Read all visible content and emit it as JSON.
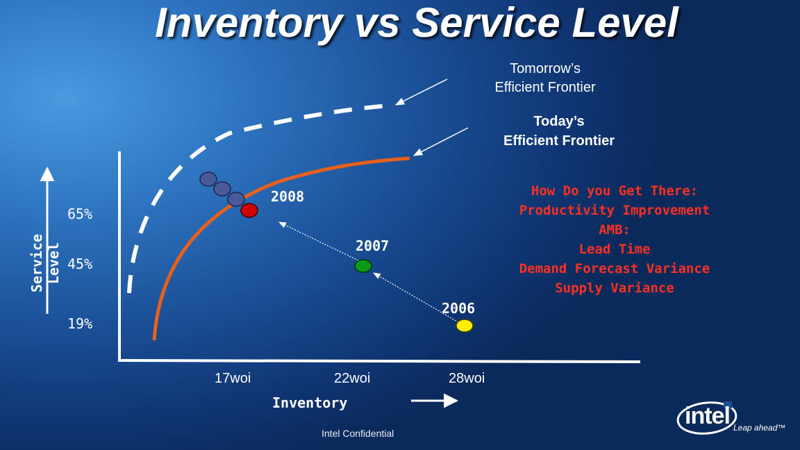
{
  "title": "Inventory vs Service Level",
  "frontiers": {
    "tomorrow": [
      "Tomorrow’s",
      "Efficient Frontier"
    ],
    "today": [
      "Today’s",
      "Efficient Frontier"
    ]
  },
  "how_to": [
    "How Do you Get There:",
    "Productivity Improvement",
    "AMB:",
    "Lead Time",
    "Demand Forecast Variance",
    "Supply Variance"
  ],
  "axes": {
    "y_label": "Service Level",
    "y_ticks": [
      "65%",
      "45%",
      "19%"
    ],
    "x_ticks": [
      "17woi",
      "22woi",
      "28woi"
    ],
    "x_label": "Inventory"
  },
  "years": {
    "y2008": "2008",
    "y2007": "2007",
    "y2006": "2006"
  },
  "colors": {
    "today_frontier": "#e8601c",
    "tomorrow_frontier": "#ffffff",
    "point_2008": "#d00000",
    "point_2007": "#0a9a1a",
    "point_2006": "#ffee00",
    "future_points": "#4a5a98",
    "how_to_text": "#ff3020"
  },
  "footer": {
    "confidential": "Intel Confidential",
    "logo_word": "intel",
    "tagline": "Leap ahead™"
  }
}
